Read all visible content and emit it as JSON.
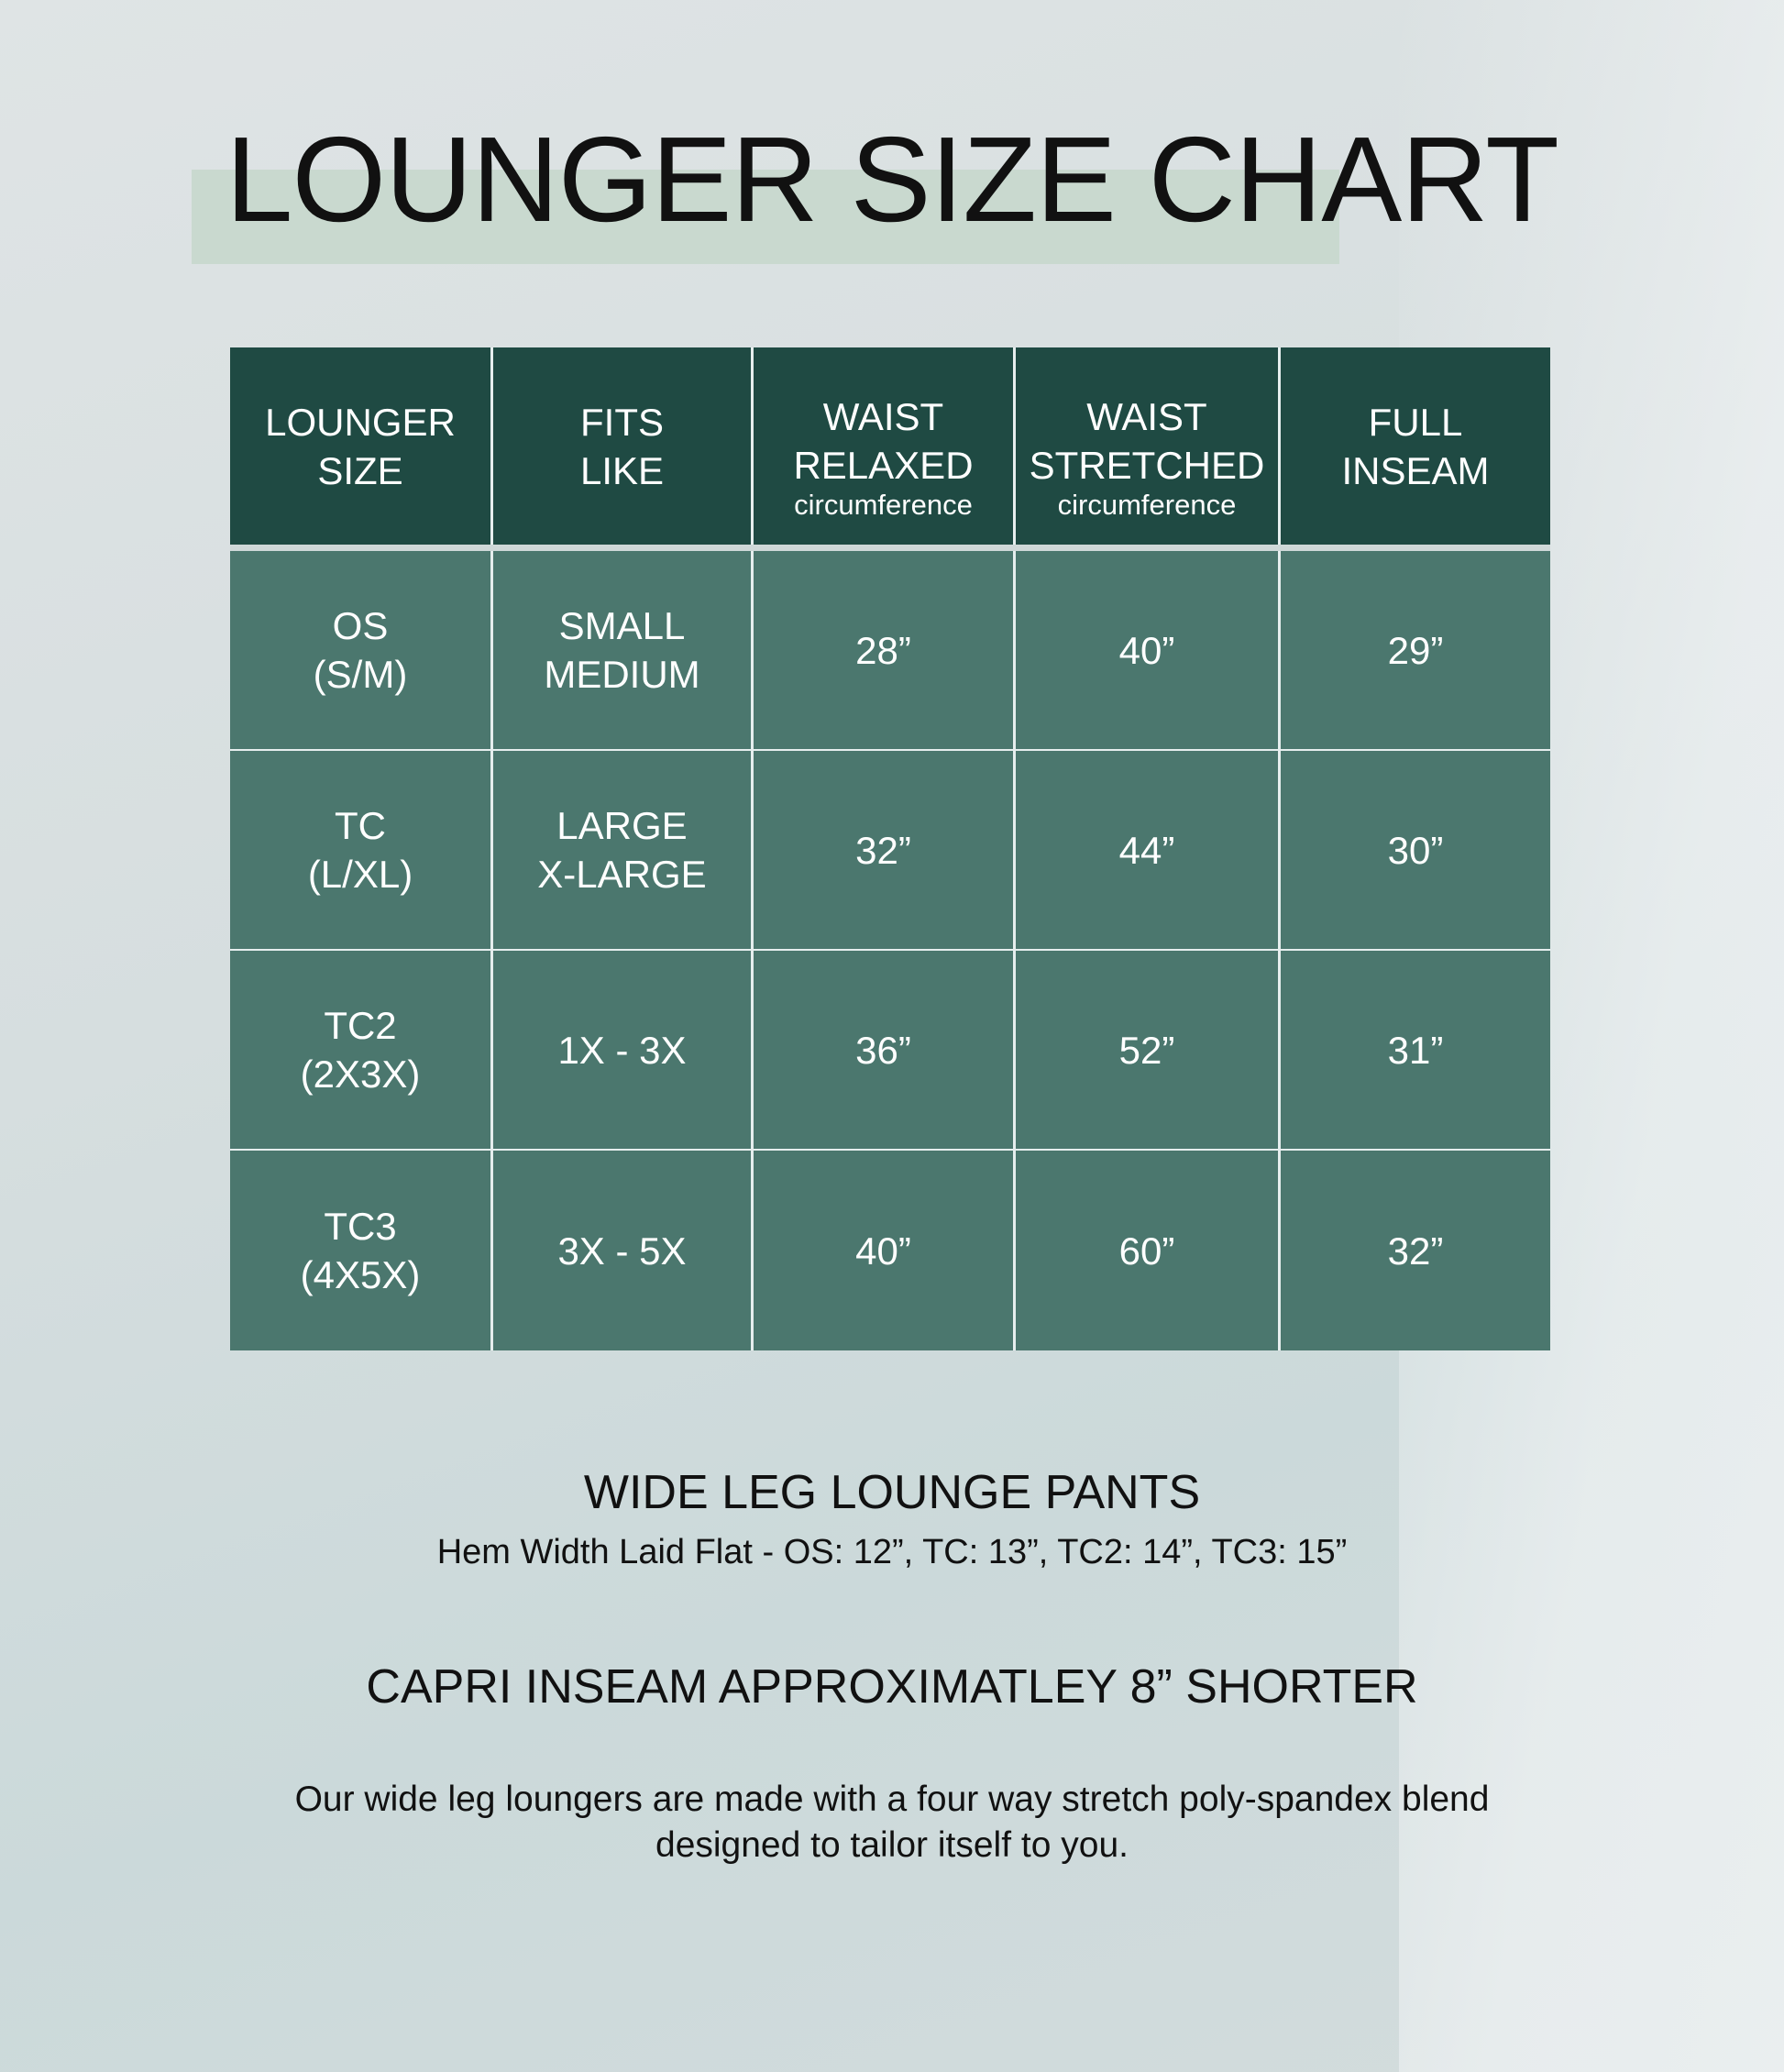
{
  "title": "LOUNGER SIZE CHART",
  "table": {
    "headers": [
      {
        "line1": "LOUNGER",
        "line2": "SIZE",
        "sub": ""
      },
      {
        "line1": "FITS",
        "line2": "LIKE",
        "sub": ""
      },
      {
        "line1": "WAIST",
        "line2": "RELAXED",
        "sub": "circumference"
      },
      {
        "line1": "WAIST",
        "line2": "STRETCHED",
        "sub": "circumference"
      },
      {
        "line1": "FULL",
        "line2": "INSEAM",
        "sub": ""
      }
    ],
    "rows": [
      {
        "size1": "OS",
        "size2": "(S/M)",
        "fits1": "SMALL",
        "fits2": "MEDIUM",
        "relaxed": "28”",
        "stretched": "40”",
        "inseam": "29”"
      },
      {
        "size1": "TC",
        "size2": "(L/XL)",
        "fits1": "LARGE",
        "fits2": "X-LARGE",
        "relaxed": "32”",
        "stretched": "44”",
        "inseam": "30”"
      },
      {
        "size1": "TC2",
        "size2": "(2X3X)",
        "fits1": "1X - 3X",
        "fits2": "",
        "relaxed": "36”",
        "stretched": "52”",
        "inseam": "31”"
      },
      {
        "size1": "TC3",
        "size2": "(4X5X)",
        "fits1": "3X - 5X",
        "fits2": "",
        "relaxed": "40”",
        "stretched": "60”",
        "inseam": "32”"
      }
    ]
  },
  "wide_leg_heading": "WIDE LEG LOUNGE PANTS",
  "hem_width": "Hem Width Laid Flat - OS: 12”, TC: 13”, TC2: 14”, TC3: 15”",
  "capri_note": "CAPRI INSEAM APPROXIMATLEY 8” SHORTER",
  "description_line1": "Our wide leg loungers are made with a four way stretch poly-spandex blend",
  "description_line2": "designed to tailor itself to you.",
  "colors": {
    "header": "#1f4a43",
    "body": "#4b776e",
    "title_highlight": "#c9d9cf"
  }
}
